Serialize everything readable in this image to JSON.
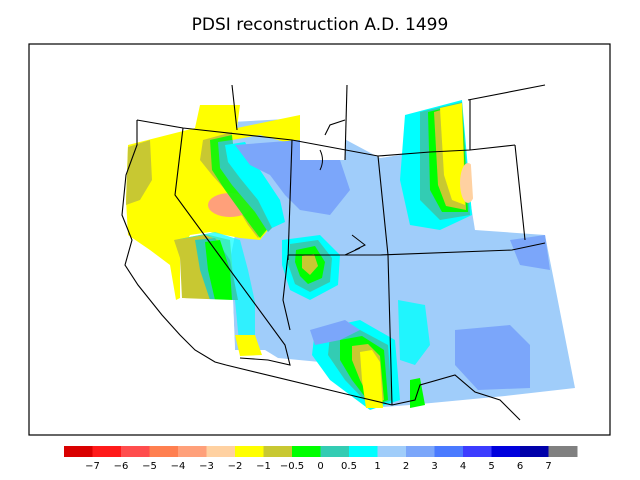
{
  "title": "PDSI reconstruction A.D. 1499",
  "legend": {
    "colors": [
      "#d90000",
      "#ff1a1a",
      "#ff4d4d",
      "#ff7f50",
      "#ffa07a",
      "#ffd1a1",
      "#ffff00",
      "#c8c832",
      "#00ff00",
      "#33ccb3",
      "#00ffff",
      "#a0cdfa",
      "#7ba6fa",
      "#4a7aff",
      "#3c3cff",
      "#0000dd",
      "#0000aa",
      "#808080"
    ],
    "ticks": [
      "−7",
      "−6",
      "−5",
      "−4",
      "−3",
      "−2",
      "−1",
      "−0.5",
      "0",
      "0.5",
      "1",
      "2",
      "3",
      "4",
      "5",
      "6",
      "7"
    ]
  },
  "palette": {
    "yellow": "#ffff00",
    "olive": "#c8c832",
    "green": "#00ff00",
    "teal": "#33ccb3",
    "cyan": "#00ffff",
    "light_blue": "#a0cdfa",
    "mid_blue": "#7ba6fa",
    "peach": "#ffd1a1",
    "salmon": "#ffa07a"
  }
}
